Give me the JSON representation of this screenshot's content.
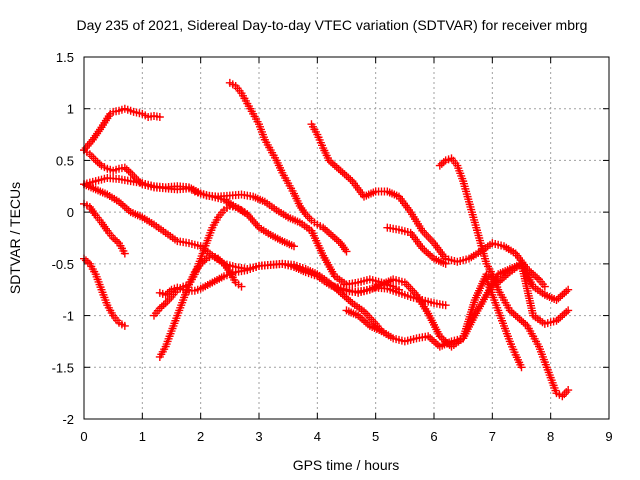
{
  "chart_data": {
    "type": "scatter",
    "title": "Day 235 of 2021, Sidereal Day-to-day VTEC variation (SDTVAR) for receiver mbrg",
    "xlabel": "GPS time / hours",
    "ylabel": "SDTVAR / TECUs",
    "xlim": [
      0,
      9
    ],
    "ylim": [
      -2,
      1.5
    ],
    "x_ticks": [
      0,
      1,
      2,
      3,
      4,
      5,
      6,
      7,
      8,
      9
    ],
    "x_tick_labels": [
      "0",
      "1",
      "2",
      "3",
      "4",
      "5",
      "6",
      "7",
      "8",
      "9"
    ],
    "y_ticks": [
      -2,
      -1.5,
      -1,
      -0.5,
      0,
      0.5,
      1,
      1.5
    ],
    "y_tick_labels": [
      "-2",
      "-1.5",
      "-1",
      "-0.5",
      "0",
      "0.5",
      "1",
      "1.5"
    ],
    "grid": true,
    "marker": "+",
    "color": "#ff0000",
    "series": [
      {
        "name": "s1",
        "x": [
          0.0,
          0.15,
          0.3,
          0.45,
          0.5,
          0.6,
          0.7,
          0.85,
          1.0,
          1.1,
          1.2,
          1.3
        ],
        "y": [
          0.6,
          0.7,
          0.82,
          0.95,
          0.97,
          0.98,
          1.0,
          0.97,
          0.95,
          0.92,
          0.93,
          0.92
        ]
      },
      {
        "name": "s2",
        "x": [
          0.0,
          0.1,
          0.2,
          0.3,
          0.4,
          0.5,
          0.6,
          0.7,
          0.8,
          0.9,
          1.0,
          1.2,
          1.4,
          1.6,
          1.8,
          1.9,
          2.1,
          2.3,
          2.5,
          2.7,
          2.9,
          3.1,
          3.3,
          3.5,
          3.7,
          3.9,
          4.1,
          4.3,
          4.5,
          4.7,
          4.9,
          5.1,
          5.3,
          5.4
        ],
        "y": [
          0.6,
          0.56,
          0.5,
          0.45,
          0.42,
          0.4,
          0.42,
          0.43,
          0.38,
          0.32,
          0.27,
          0.24,
          0.23,
          0.22,
          0.23,
          0.2,
          0.16,
          0.15,
          0.16,
          0.17,
          0.15,
          0.1,
          0.02,
          -0.05,
          -0.1,
          -0.18,
          -0.42,
          -0.62,
          -0.7,
          -0.68,
          -0.65,
          -0.68,
          -0.72,
          -0.75
        ]
      },
      {
        "name": "s3",
        "x": [
          0.0,
          0.2,
          0.4,
          0.6,
          0.8,
          1.0,
          1.2,
          1.4,
          1.6,
          1.8,
          2.0,
          2.2,
          2.4,
          2.6,
          2.8,
          3.0,
          3.2,
          3.4,
          3.6
        ],
        "y": [
          0.27,
          0.3,
          0.33,
          0.32,
          0.3,
          0.28,
          0.25,
          0.24,
          0.25,
          0.24,
          0.18,
          0.15,
          0.12,
          0.05,
          -0.02,
          -0.15,
          -0.22,
          -0.28,
          -0.33
        ]
      },
      {
        "name": "s4",
        "x": [
          0.0,
          0.2,
          0.4,
          0.6,
          0.8,
          1.0,
          1.2,
          1.4,
          1.6,
          1.8,
          2.0,
          2.2,
          2.4,
          2.6,
          2.8,
          3.0,
          3.2,
          3.4,
          3.6,
          3.8,
          4.0,
          4.2,
          4.4,
          4.6,
          4.8,
          5.0,
          5.2,
          5.4,
          5.6,
          5.8,
          6.0,
          6.2
        ],
        "y": [
          0.27,
          0.22,
          0.17,
          0.1,
          0.0,
          -0.05,
          -0.12,
          -0.2,
          -0.28,
          -0.3,
          -0.33,
          -0.42,
          -0.5,
          -0.53,
          -0.55,
          -0.52,
          -0.51,
          -0.5,
          -0.53,
          -0.58,
          -0.62,
          -0.7,
          -0.75,
          -0.77,
          -0.76,
          -0.73,
          -0.74,
          -0.78,
          -0.82,
          -0.85,
          -0.88,
          -0.9
        ]
      },
      {
        "name": "s5",
        "x": [
          0.0,
          0.1,
          0.2,
          0.3,
          0.4,
          0.5,
          0.6,
          0.7
        ],
        "y": [
          0.08,
          0.05,
          -0.03,
          -0.1,
          -0.18,
          -0.25,
          -0.3,
          -0.4
        ]
      },
      {
        "name": "s6",
        "x": [
          0.0,
          0.1,
          0.2,
          0.3,
          0.4,
          0.5,
          0.6,
          0.7
        ],
        "y": [
          -0.45,
          -0.5,
          -0.6,
          -0.75,
          -0.9,
          -1.0,
          -1.07,
          -1.1
        ]
      },
      {
        "name": "s7",
        "x": [
          1.2,
          1.3,
          1.4,
          1.5,
          1.6,
          1.7,
          1.8,
          1.9,
          2.0,
          2.1,
          2.2,
          2.3,
          2.4,
          2.5,
          2.6,
          2.7,
          2.8
        ],
        "y": [
          -1.0,
          -0.93,
          -0.88,
          -0.82,
          -0.75,
          -0.72,
          -0.7,
          -0.6,
          -0.45,
          -0.3,
          -0.15,
          -0.05,
          0.02,
          0.06,
          0.05,
          0.02,
          -0.02
        ]
      },
      {
        "name": "s8",
        "x": [
          1.3,
          1.4,
          1.5,
          1.6,
          1.7,
          1.8,
          1.9,
          2.0,
          2.1,
          2.2,
          2.3,
          2.4,
          2.5,
          2.6,
          2.7
        ],
        "y": [
          -1.4,
          -1.3,
          -1.15,
          -1.0,
          -0.85,
          -0.7,
          -0.58,
          -0.5,
          -0.45,
          -0.42,
          -0.45,
          -0.5,
          -0.58,
          -0.68,
          -0.72
        ]
      },
      {
        "name": "s9",
        "x": [
          1.3,
          1.4,
          1.5,
          1.6,
          1.7,
          1.8,
          1.9,
          2.0,
          2.2,
          2.4,
          2.6,
          2.8,
          3.0,
          3.2,
          3.4,
          3.6,
          3.8,
          4.0,
          4.2,
          4.4,
          4.6,
          4.8,
          4.9,
          5.0,
          5.1
        ],
        "y": [
          -0.78,
          -0.8,
          -0.75,
          -0.73,
          -0.75,
          -0.76,
          -0.76,
          -0.74,
          -0.68,
          -0.62,
          -0.58,
          -0.56,
          -0.52,
          -0.51,
          -0.5,
          -0.51,
          -0.55,
          -0.6,
          -0.68,
          -0.78,
          -0.88,
          -0.96,
          -1.02,
          -1.08,
          -1.15
        ]
      },
      {
        "name": "s10",
        "x": [
          2.5,
          2.6,
          2.7,
          2.8,
          2.9,
          3.0,
          3.1,
          3.2,
          3.3,
          3.4,
          3.5,
          3.6,
          3.7,
          3.8,
          3.9,
          4.0,
          4.1,
          4.2,
          4.3,
          4.4,
          4.5
        ],
        "y": [
          1.25,
          1.22,
          1.15,
          1.05,
          0.95,
          0.85,
          0.7,
          0.6,
          0.5,
          0.38,
          0.28,
          0.18,
          0.06,
          -0.02,
          -0.08,
          -0.12,
          -0.15,
          -0.2,
          -0.25,
          -0.3,
          -0.38
        ]
      },
      {
        "name": "s11",
        "x": [
          3.9,
          4.0,
          4.1,
          4.2,
          4.4,
          4.6,
          4.8,
          5.0,
          5.2,
          5.4,
          5.6,
          5.8,
          6.0,
          6.2,
          6.4,
          6.6,
          6.8,
          7.0,
          7.2,
          7.4,
          7.6,
          7.8,
          7.9
        ],
        "y": [
          0.85,
          0.75,
          0.62,
          0.5,
          0.4,
          0.3,
          0.15,
          0.2,
          0.2,
          0.15,
          0.0,
          -0.18,
          -0.3,
          -0.45,
          -0.48,
          -0.45,
          -0.38,
          -0.3,
          -0.33,
          -0.4,
          -0.55,
          -0.65,
          -0.72
        ]
      },
      {
        "name": "s12",
        "x": [
          4.3,
          4.5,
          4.7,
          4.9,
          5.1,
          5.3,
          5.5,
          5.7,
          5.9,
          6.1,
          6.3,
          6.5,
          6.7,
          6.9,
          7.1,
          7.3,
          7.5,
          7.7,
          7.9,
          8.1,
          8.2,
          8.3
        ],
        "y": [
          -0.72,
          -0.75,
          -0.78,
          -0.75,
          -0.7,
          -0.65,
          -0.68,
          -0.8,
          -0.98,
          -1.2,
          -1.3,
          -1.22,
          -1.0,
          -0.8,
          -0.6,
          -0.55,
          -0.5,
          -0.72,
          -0.8,
          -0.85,
          -0.8,
          -0.75
        ]
      },
      {
        "name": "s13",
        "x": [
          4.5,
          4.7,
          4.9,
          5.1,
          5.3,
          5.5,
          5.7,
          5.9,
          6.1,
          6.3,
          6.5,
          6.7,
          6.9,
          7.1,
          7.3,
          7.5,
          7.7,
          7.9,
          8.1,
          8.2,
          8.3
        ],
        "y": [
          -0.95,
          -1.0,
          -1.1,
          -1.15,
          -1.22,
          -1.25,
          -1.22,
          -1.2,
          -1.3,
          -1.25,
          -1.22,
          -0.85,
          -0.6,
          -0.68,
          -0.58,
          -0.5,
          -1.0,
          -1.08,
          -1.05,
          -1.0,
          -0.95
        ]
      },
      {
        "name": "s14",
        "x": [
          5.2,
          5.4,
          5.6,
          5.8,
          6.0,
          6.2
        ],
        "y": [
          -0.15,
          -0.17,
          -0.2,
          -0.35,
          -0.45,
          -0.5
        ]
      },
      {
        "name": "s15",
        "x": [
          6.1,
          6.2,
          6.3,
          6.4,
          6.5,
          6.6,
          6.7,
          6.8,
          6.9,
          7.0,
          7.1,
          7.2,
          7.3,
          7.4,
          7.5,
          7.6,
          7.7,
          7.8,
          7.9,
          8.0,
          8.1,
          8.2,
          8.3
        ],
        "y": [
          0.45,
          0.5,
          0.52,
          0.45,
          0.3,
          0.1,
          -0.1,
          -0.3,
          -0.5,
          -0.6,
          -0.75,
          -0.85,
          -0.95,
          -1.0,
          -1.05,
          -1.1,
          -1.2,
          -1.3,
          -1.45,
          -1.6,
          -1.75,
          -1.78,
          -1.72
        ]
      },
      {
        "name": "s16",
        "x": [
          6.9,
          7.0,
          7.1,
          7.2,
          7.3,
          7.4,
          7.5
        ],
        "y": [
          -0.65,
          -0.8,
          -0.95,
          -1.1,
          -1.25,
          -1.38,
          -1.5
        ]
      }
    ]
  }
}
